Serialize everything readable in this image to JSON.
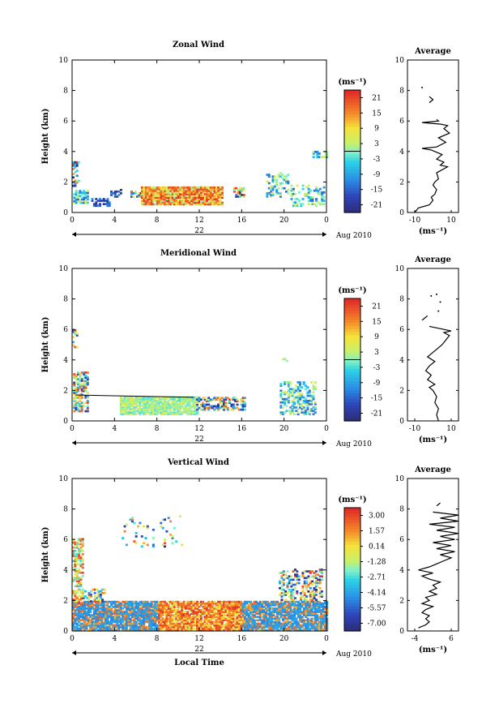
{
  "chart_data": [
    {
      "type": "heatmap",
      "title": "Zonal Wind",
      "ylabel": "Height (km)",
      "xlabel": "",
      "x_ticks": [
        "0",
        "4",
        "8",
        "12",
        "16",
        "20",
        "0"
      ],
      "y_ticks": [
        "0",
        "2",
        "4",
        "6",
        "8",
        "10"
      ],
      "date_label": "22",
      "month_label": "Aug 2010",
      "xlim": [
        0,
        24
      ],
      "ylim": [
        0,
        10
      ],
      "colorbar": {
        "unit_label": "(ms⁻¹)",
        "ticks": [
          "21",
          "15",
          "9",
          "3",
          "-3",
          "-9",
          "-15",
          "-21"
        ]
      },
      "average_profile": {
        "title": "Average",
        "xlabel": "(ms⁻¹)",
        "x_ticks": [
          "-10",
          "10"
        ],
        "y_ticks": [
          "0",
          "2",
          "4",
          "6",
          "8",
          "10"
        ],
        "xlim": [
          -14,
          14
        ],
        "points": [
          [
            -10,
            0.0
          ],
          [
            -8,
            0.3
          ],
          [
            -2,
            0.5
          ],
          [
            0,
            0.8
          ],
          [
            -1,
            1.0
          ],
          [
            1,
            1.2
          ],
          [
            2,
            1.5
          ],
          [
            0,
            1.8
          ],
          [
            1,
            2.0
          ],
          [
            3,
            2.2
          ],
          [
            2,
            2.6
          ],
          [
            8,
            3.0
          ],
          [
            4,
            3.1
          ],
          [
            6,
            3.3
          ],
          [
            2,
            3.5
          ],
          [
            5,
            3.8
          ],
          [
            -1,
            4.1
          ],
          [
            -6,
            4.2
          ],
          [
            2,
            4.3
          ],
          [
            7,
            4.6
          ],
          [
            3,
            4.9
          ],
          [
            9,
            5.2
          ],
          [
            6,
            5.5
          ],
          [
            8,
            5.7
          ],
          [
            4,
            5.8
          ],
          [
            -6,
            5.9
          ],
          [
            3,
            6.0
          ],
          [
            2,
            6.1
          ]
        ],
        "points2": [
          [
            -2,
            7.2
          ],
          [
            0,
            7.4
          ],
          [
            -2,
            7.6
          ]
        ],
        "dots": [
          [
            -6,
            8.2
          ]
        ]
      }
    },
    {
      "type": "heatmap",
      "title": "Meridional Wind",
      "ylabel": "Height (km)",
      "xlabel": "",
      "x_ticks": [
        "0",
        "4",
        "8",
        "12",
        "16",
        "20",
        "0"
      ],
      "y_ticks": [
        "0",
        "2",
        "4",
        "6",
        "8",
        "10"
      ],
      "date_label": "22",
      "month_label": "Aug 2010",
      "xlim": [
        0,
        24
      ],
      "ylim": [
        0,
        10
      ],
      "colorbar": {
        "unit_label": "(ms⁻¹)",
        "ticks": [
          "21",
          "15",
          "9",
          "3",
          "-3",
          "-9",
          "-15",
          "-21"
        ]
      },
      "average_profile": {
        "title": "Average",
        "xlabel": "(ms⁻¹)",
        "x_ticks": [
          "-10",
          "10"
        ],
        "y_ticks": [
          "0",
          "2",
          "4",
          "6",
          "8",
          "10"
        ],
        "xlim": [
          -14,
          14
        ],
        "points": [
          [
            3,
            0.0
          ],
          [
            2,
            0.4
          ],
          [
            3,
            0.8
          ],
          [
            1,
            1.2
          ],
          [
            2,
            1.6
          ],
          [
            0,
            2.0
          ],
          [
            -2,
            2.2
          ],
          [
            1,
            2.4
          ],
          [
            -3,
            2.7
          ],
          [
            -1,
            3.0
          ],
          [
            -4,
            3.3
          ],
          [
            -2,
            3.6
          ],
          [
            1,
            3.9
          ],
          [
            -3,
            4.2
          ],
          [
            0,
            4.5
          ],
          [
            3,
            4.8
          ],
          [
            5,
            5.0
          ],
          [
            7,
            5.3
          ],
          [
            9,
            5.6
          ],
          [
            6,
            5.8
          ],
          [
            10,
            5.9
          ],
          [
            -2,
            6.2
          ]
        ],
        "points2": [
          [
            -6,
            6.6
          ],
          [
            -3,
            6.9
          ]
        ],
        "dots": [
          [
            -1,
            8.2
          ],
          [
            2,
            8.3
          ],
          [
            4,
            7.8
          ],
          [
            3,
            7.2
          ]
        ]
      }
    },
    {
      "type": "heatmap",
      "title": "Vertical Wind",
      "ylabel": "Height (km)",
      "xlabel": "Local Time",
      "x_ticks": [
        "0",
        "4",
        "8",
        "12",
        "16",
        "20",
        "0"
      ],
      "y_ticks": [
        "0",
        "2",
        "4",
        "6",
        "8",
        "10"
      ],
      "date_label": "22",
      "month_label": "Aug 2010",
      "xlim": [
        0,
        24
      ],
      "ylim": [
        0,
        10
      ],
      "colorbar": {
        "unit_label": "(ms⁻¹)",
        "ticks": [
          "3.00",
          "1.57",
          "0.14",
          "-1.28",
          "-2.71",
          "-4.14",
          "-5.57",
          "-7.00"
        ]
      },
      "average_profile": {
        "title": "Average",
        "xlabel": "(ms⁻¹)",
        "x_ticks": [
          "-4",
          "6"
        ],
        "y_ticks": [
          "0",
          "2",
          "4",
          "6",
          "8",
          "10"
        ],
        "xlim": [
          -6,
          8
        ],
        "points": [
          [
            -3,
            0.2
          ],
          [
            -1,
            0.4
          ],
          [
            0,
            0.6
          ],
          [
            -1,
            0.8
          ],
          [
            0,
            1.0
          ],
          [
            -2,
            1.2
          ],
          [
            -1,
            1.4
          ],
          [
            1,
            1.6
          ],
          [
            -2,
            1.8
          ],
          [
            0,
            2.0
          ],
          [
            -1,
            2.2
          ],
          [
            2,
            2.4
          ],
          [
            0,
            2.6
          ],
          [
            2,
            2.8
          ],
          [
            1,
            3.0
          ],
          [
            3,
            3.2
          ],
          [
            0,
            3.4
          ],
          [
            -2,
            3.6
          ],
          [
            1,
            3.8
          ],
          [
            -3,
            4.0
          ],
          [
            0,
            4.2
          ],
          [
            2,
            4.4
          ],
          [
            4,
            4.6
          ],
          [
            6,
            4.8
          ],
          [
            3,
            5.0
          ],
          [
            7,
            5.2
          ],
          [
            2,
            5.4
          ],
          [
            6,
            5.6
          ],
          [
            1,
            5.8
          ],
          [
            7,
            6.0
          ],
          [
            3,
            6.2
          ],
          [
            8,
            6.4
          ],
          [
            2,
            6.6
          ],
          [
            7,
            6.8
          ],
          [
            0,
            7.0
          ],
          [
            8,
            7.2
          ],
          [
            3,
            7.4
          ],
          [
            8,
            7.6
          ],
          [
            1,
            7.8
          ]
        ],
        "points2": [
          [
            2,
            8.2
          ],
          [
            3,
            8.4
          ]
        ],
        "dots": []
      }
    }
  ]
}
